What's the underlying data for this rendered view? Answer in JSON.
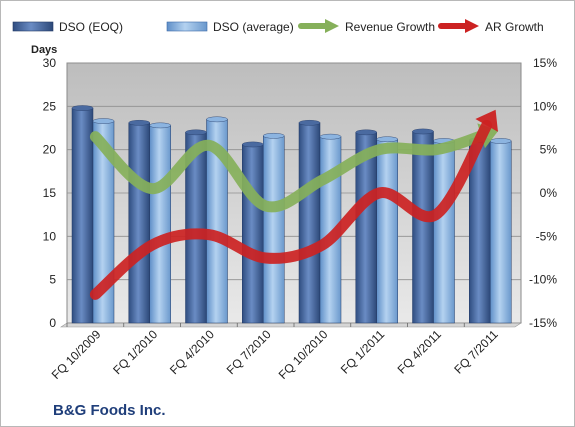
{
  "chart_data": {
    "type": "bar",
    "title": "",
    "company": "B&G Foods Inc.",
    "ylabel": "Days",
    "categories": [
      "FQ 10/2009",
      "FQ 1/2010",
      "FQ 4/2010",
      "FQ 7/2010",
      "FQ 10/2010",
      "FQ 1/2011",
      "FQ 4/2011",
      "FQ 7/2011"
    ],
    "ylim": [
      0,
      30
    ],
    "y_ticks": [
      "0",
      "5",
      "10",
      "15",
      "20",
      "25",
      "30"
    ],
    "y2lim": [
      -15,
      15
    ],
    "y2_ticks": [
      "-15%",
      "-10%",
      "-5%",
      "0%",
      "5%",
      "10%",
      "15%"
    ],
    "grid": true,
    "legend_position": "top",
    "series": [
      {
        "name": "DSO (EOQ)",
        "kind": "bar",
        "axis": "left",
        "color": "#4a6aa0",
        "values": [
          24.8,
          23.1,
          22.0,
          20.6,
          23.1,
          22.0,
          22.1,
          21.1
        ]
      },
      {
        "name": "DSO (average)",
        "kind": "bar",
        "axis": "left",
        "color": "#8cb4e0",
        "values": [
          23.3,
          22.8,
          23.5,
          21.6,
          21.5,
          21.2,
          21.0,
          21.0
        ]
      },
      {
        "name": "Revenue Growth",
        "kind": "line",
        "axis": "right",
        "unit": "%",
        "color": "#86b05a",
        "values": [
          6.5,
          0.5,
          5.5,
          -1.5,
          1.5,
          5.0,
          5.0,
          7.0
        ]
      },
      {
        "name": "AR Growth",
        "kind": "line",
        "axis": "right",
        "unit": "%",
        "color": "#cc2222",
        "values": [
          -11.7,
          -6.0,
          -4.8,
          -7.5,
          -6.0,
          0.0,
          -2.5,
          9.0
        ]
      }
    ]
  }
}
